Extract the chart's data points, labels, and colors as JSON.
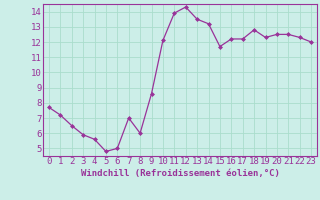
{
  "x": [
    0,
    1,
    2,
    3,
    4,
    5,
    6,
    7,
    8,
    9,
    10,
    11,
    12,
    13,
    14,
    15,
    16,
    17,
    18,
    19,
    20,
    21,
    22,
    23
  ],
  "y": [
    7.7,
    7.2,
    6.5,
    5.9,
    5.6,
    4.8,
    5.0,
    7.0,
    6.0,
    8.6,
    12.1,
    13.9,
    14.3,
    13.5,
    13.2,
    11.7,
    12.2,
    12.2,
    12.8,
    12.3,
    12.5,
    12.5,
    12.3,
    12.0
  ],
  "line_color": "#993399",
  "marker": "D",
  "marker_size": 2.0,
  "background_color": "#cceee8",
  "grid_color": "#aaddcc",
  "xlabel": "Windchill (Refroidissement éolien,°C)",
  "xlabel_fontsize": 6.5,
  "tick_fontsize": 6.5,
  "xlim": [
    -0.5,
    23.5
  ],
  "ylim": [
    4.5,
    14.5
  ],
  "yticks": [
    5,
    6,
    7,
    8,
    9,
    10,
    11,
    12,
    13,
    14
  ],
  "xticks": [
    0,
    1,
    2,
    3,
    4,
    5,
    6,
    7,
    8,
    9,
    10,
    11,
    12,
    13,
    14,
    15,
    16,
    17,
    18,
    19,
    20,
    21,
    22,
    23
  ]
}
